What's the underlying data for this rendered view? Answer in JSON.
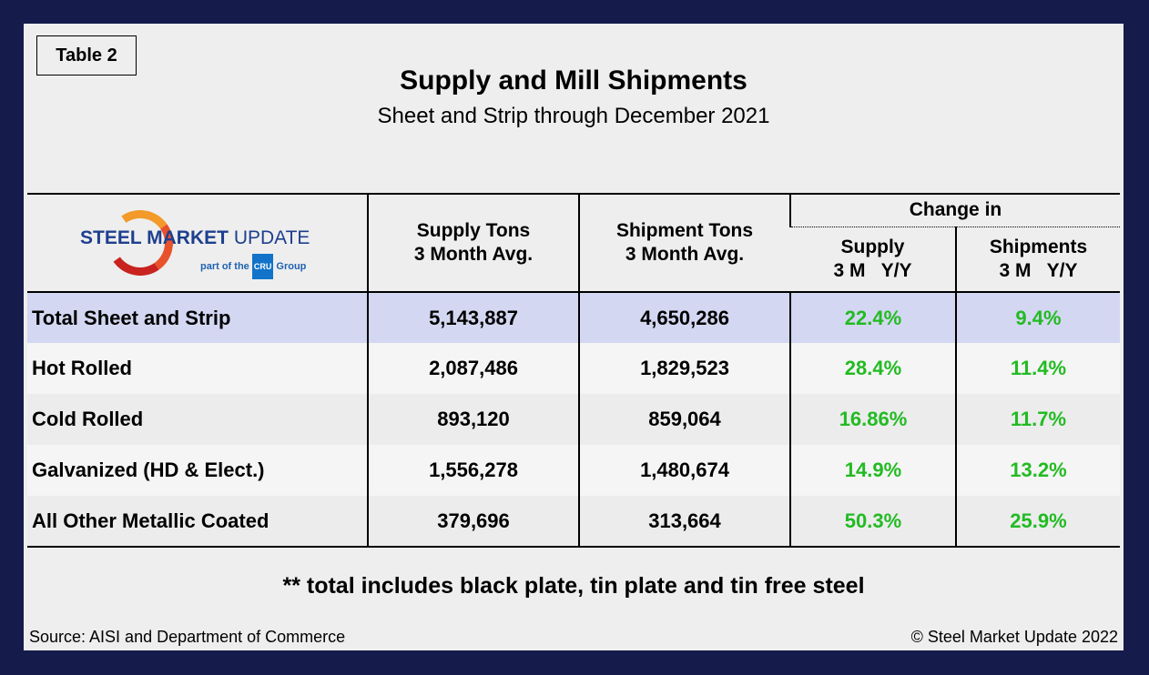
{
  "tag": "Table 2",
  "title": "Supply and Mill Shipments",
  "subtitle": "Sheet and Strip through December 2021",
  "logo": {
    "main": "STEEL MARKET",
    "update": "UPDATE",
    "part": "part of the",
    "cru": "CRU",
    "group": "Group"
  },
  "headers": {
    "supply": "Supply Tons",
    "supply2": "3 Month Avg.",
    "ship": "Shipment Tons",
    "ship2": "3 Month Avg.",
    "change": "Change in",
    "c_supply": "Supply",
    "c_ship": "Shipments",
    "period": "3 M   Y/Y"
  },
  "rows": [
    {
      "name": "Total Sheet and Strip",
      "supply": "5,143,887",
      "ship": "4,650,286",
      "supply_chg": "22.4%",
      "ship_chg": "9.4%"
    },
    {
      "name": "Hot Rolled",
      "supply": "2,087,486",
      "ship": "1,829,523",
      "supply_chg": "28.4%",
      "ship_chg": "11.4%"
    },
    {
      "name": "Cold Rolled",
      "supply": "893,120",
      "ship": "859,064",
      "supply_chg": "16.86%",
      "ship_chg": "11.7%"
    },
    {
      "name": "Galvanized (HD & Elect.)",
      "supply": "1,556,278",
      "ship": "1,480,674",
      "supply_chg": "14.9%",
      "ship_chg": "13.2%"
    },
    {
      "name": "All Other Metallic Coated",
      "supply": "379,696",
      "ship": "313,664",
      "supply_chg": "50.3%",
      "ship_chg": "25.9%"
    }
  ],
  "note": "** total includes black plate, tin plate and tin free steel",
  "source": "Source: AISI and Department of Commerce",
  "copyright": "© Steel Market Update 2022",
  "colors": {
    "frame": "#151b4b",
    "highlight_row": "#d3d7f1",
    "positive": "#22bb22"
  }
}
